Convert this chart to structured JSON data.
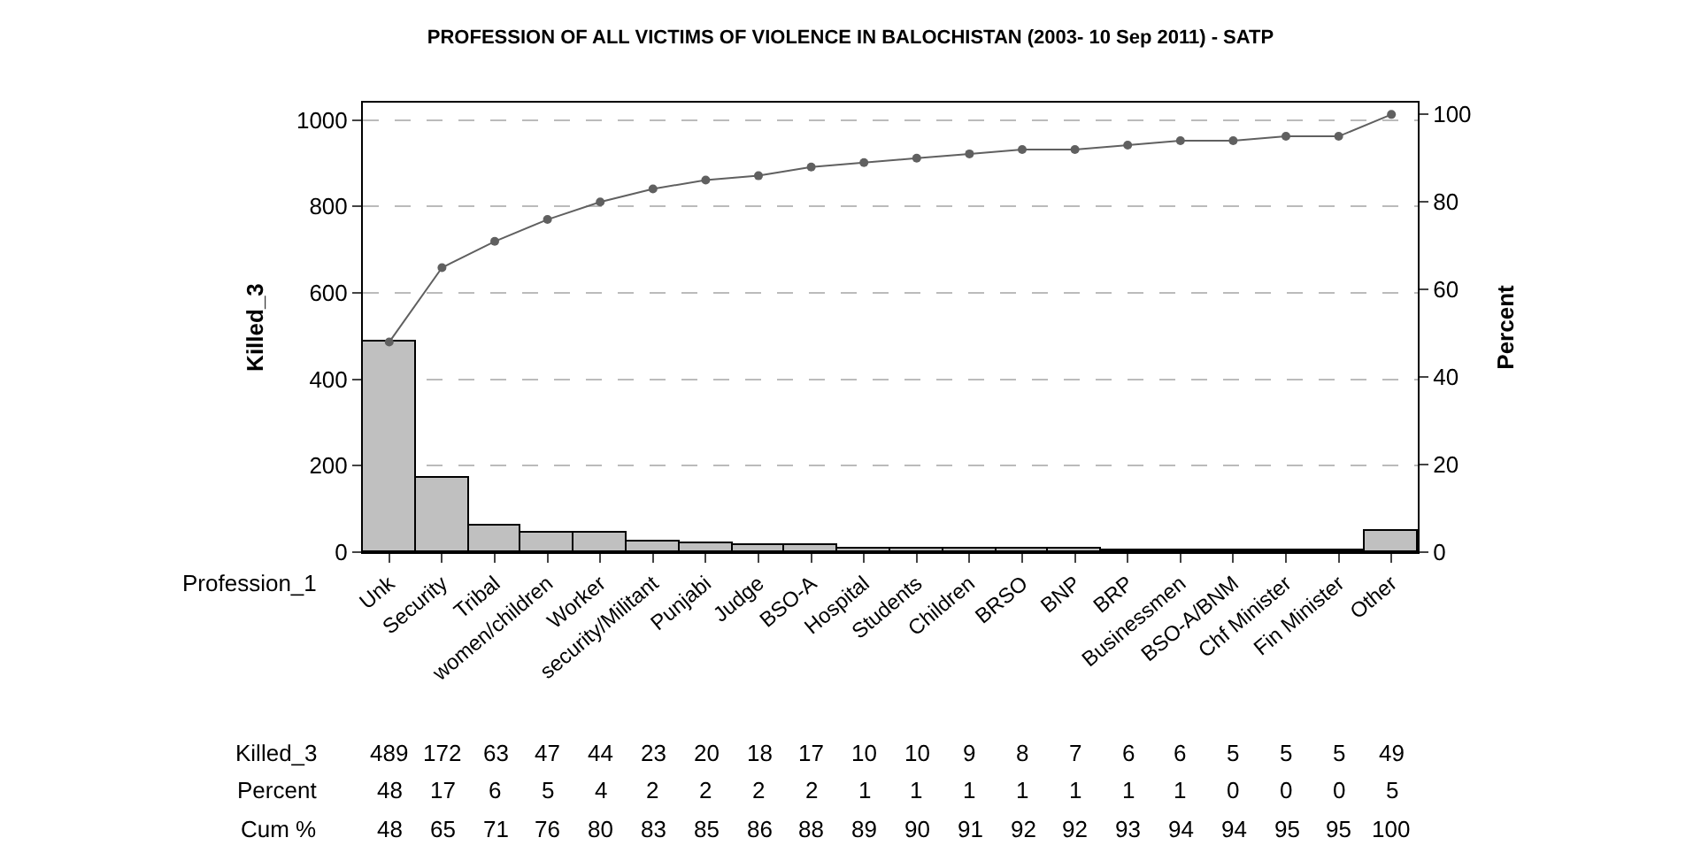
{
  "chart_data": {
    "type": "bar",
    "title": "PROFESSION OF ALL VICTIMS OF VIOLENCE IN BALOCHISTAN (2003- 10 Sep 2011) - SATP",
    "xlabel": "Profession_1",
    "ylabel": "Killed_3",
    "y2label": "Percent",
    "categories": [
      "Unk",
      "Security",
      "Tribal",
      "women/children",
      "Worker",
      "security/Militant",
      "Punjabi",
      "Judge",
      "BSO-A",
      "Hospital",
      "Students",
      "Children",
      "BRSO",
      "BNP",
      "BRP",
      "Businessmen",
      "BSO-A/BNM",
      "Chf Minister",
      "Fin Minister",
      "Other"
    ],
    "series": [
      {
        "color": "#c0c0c0",
        "values": [
          489,
          172,
          63,
          47,
          44,
          23,
          20,
          18,
          17,
          10,
          10,
          9,
          8,
          7,
          6,
          6,
          5,
          5,
          5,
          49
        ]
      },
      {
        "type": "line",
        "axis": "y2",
        "color": "#606060",
        "values": [
          48,
          65,
          71,
          76,
          80,
          83,
          85,
          86,
          88,
          89,
          90,
          91,
          92,
          92,
          93,
          94,
          94,
          95,
          95,
          100
        ]
      }
    ],
    "data_labels": true,
    "annotations": [
      "Killed_3",
      "Percent",
      "Cum %",
      "48",
      "17",
      "6",
      "5",
      "4",
      "2",
      "2",
      "2",
      "2",
      "1",
      "1",
      "1",
      "1",
      "1",
      "1",
      "1",
      "0",
      "0",
      "0",
      "5"
    ],
    "ylim": [
      0,
      1040
    ],
    "yticks": [
      0,
      200,
      400,
      600,
      800,
      1000
    ],
    "y2lim": [
      0,
      102.7
    ],
    "y2ticks": [
      0,
      20,
      40,
      60,
      80,
      100
    ],
    "grid": "y",
    "marker": "circle",
    "line_style": "solid",
    "legend": false
  }
}
